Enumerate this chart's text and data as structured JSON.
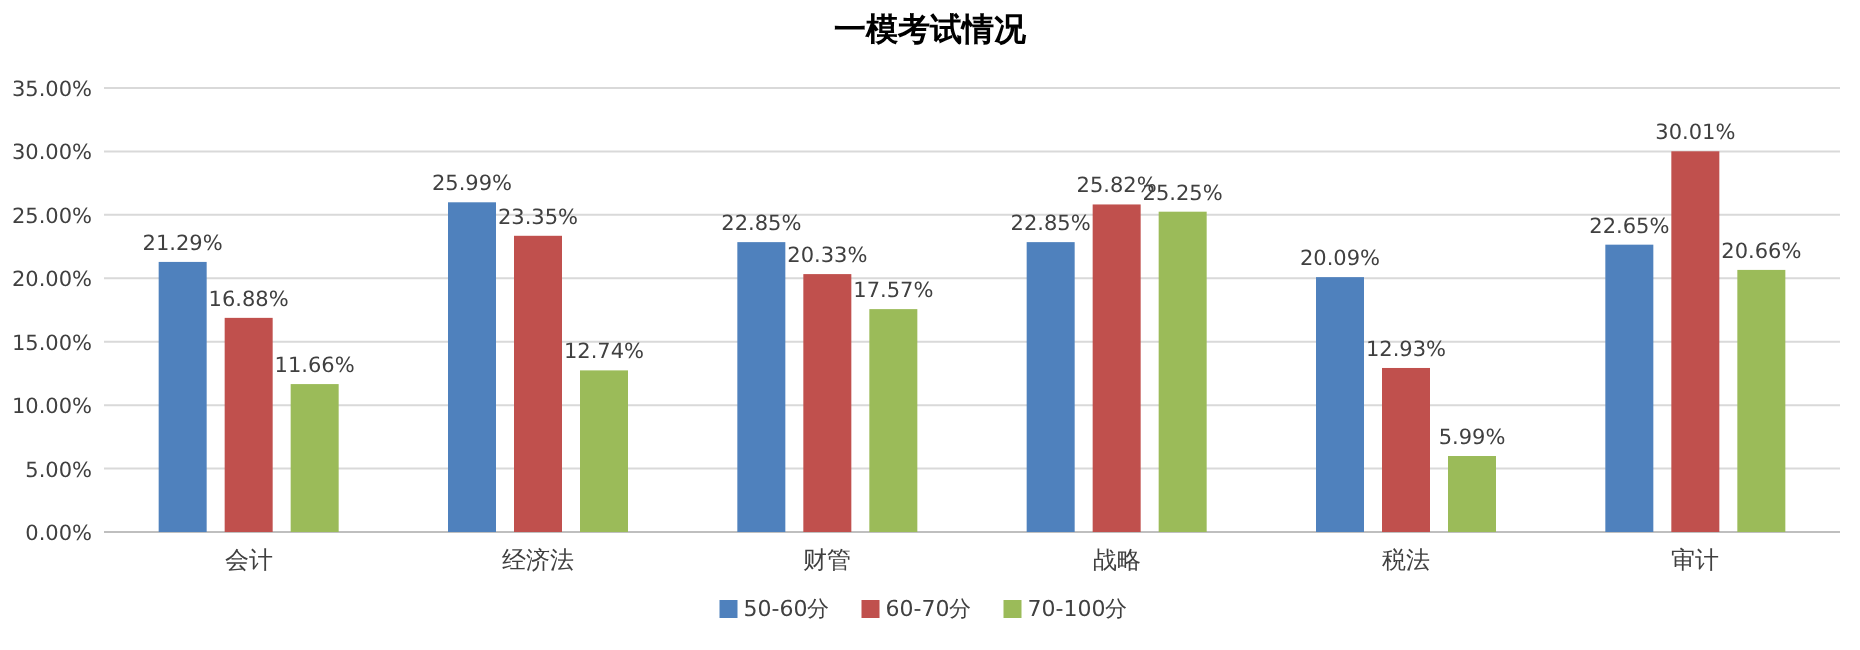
{
  "chart_data": {
    "type": "bar",
    "title": "一模考试情况",
    "categories": [
      "会计",
      "经济法",
      "财管",
      "战略",
      "税法",
      "审计"
    ],
    "series": [
      {
        "name": "50-60分",
        "color": "#4f81bd",
        "values": [
          21.29,
          25.99,
          22.85,
          22.85,
          20.09,
          22.65
        ],
        "value_labels": [
          "21.29%",
          "25.99%",
          "22.85%",
          "22.85%",
          "20.09%",
          "22.65%"
        ]
      },
      {
        "name": "60-70分",
        "color": "#c0504d",
        "values": [
          16.88,
          23.35,
          20.33,
          25.82,
          12.93,
          30.01
        ],
        "value_labels": [
          "16.88%",
          "23.35%",
          "20.33%",
          "25.82%",
          "12.93%",
          "30.01%"
        ]
      },
      {
        "name": "70-100分",
        "color": "#9bbb59",
        "values": [
          11.66,
          12.74,
          17.57,
          25.25,
          5.99,
          20.66
        ],
        "value_labels": [
          "11.66%",
          "12.74%",
          "17.57%",
          "25.25%",
          "5.99%",
          "20.66%"
        ]
      }
    ],
    "ylim": [
      0,
      35
    ],
    "yticks": [
      {
        "value": 0,
        "label": "0.00%"
      },
      {
        "value": 5,
        "label": "5.00%"
      },
      {
        "value": 10,
        "label": "10.00%"
      },
      {
        "value": 15,
        "label": "15.00%"
      },
      {
        "value": 20,
        "label": "20.00%"
      },
      {
        "value": 25,
        "label": "25.00%"
      },
      {
        "value": 30,
        "label": "30.00%"
      },
      {
        "value": 35,
        "label": "35.00%"
      }
    ],
    "grid": "y",
    "legend": "bottom"
  }
}
